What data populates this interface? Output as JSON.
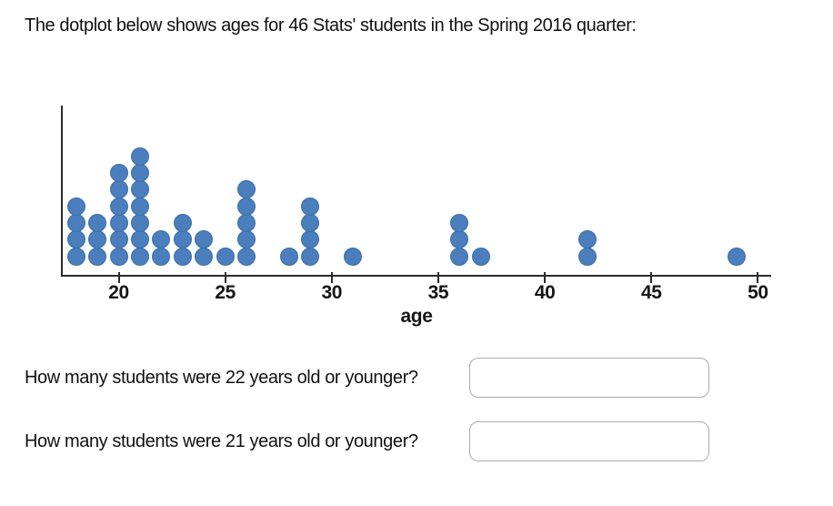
{
  "title": "The dotplot below shows ages for 46 Stats' students in the Spring 2016 quarter:",
  "chart_data": {
    "type": "dotplot",
    "title": "",
    "xlabel": "age",
    "ylabel": "",
    "x_ticks": [
      20,
      25,
      30,
      35,
      40,
      45,
      50
    ],
    "xlim": [
      17.3,
      50.6
    ],
    "grid": false,
    "total_points": 46,
    "points": [
      {
        "age": 18,
        "count": 4
      },
      {
        "age": 19,
        "count": 3
      },
      {
        "age": 20,
        "count": 6
      },
      {
        "age": 21,
        "count": 7
      },
      {
        "age": 22,
        "count": 2
      },
      {
        "age": 23,
        "count": 3
      },
      {
        "age": 24,
        "count": 2
      },
      {
        "age": 25,
        "count": 1
      },
      {
        "age": 26,
        "count": 5
      },
      {
        "age": 28,
        "count": 1
      },
      {
        "age": 29,
        "count": 4
      },
      {
        "age": 31,
        "count": 1
      },
      {
        "age": 36,
        "count": 3
      },
      {
        "age": 37,
        "count": 1
      },
      {
        "age": 42,
        "count": 2
      },
      {
        "age": 49,
        "count": 1
      }
    ],
    "dot_color": "#4a7ebd",
    "axis_color": "#2b2b2b"
  },
  "questions": [
    {
      "label": "How many students were 22 years old or younger?",
      "value": ""
    },
    {
      "label": "How many students were 21 years old or younger?",
      "value": ""
    }
  ]
}
